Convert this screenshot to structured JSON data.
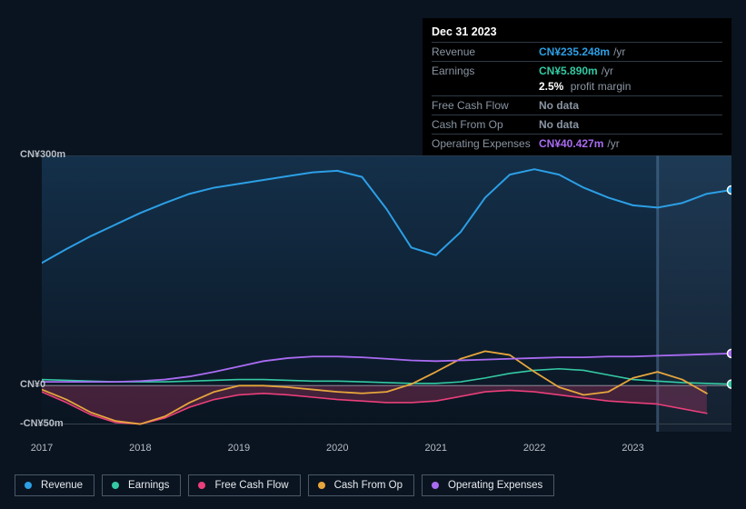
{
  "tooltip": {
    "date": "Dec 31 2023",
    "rows": [
      {
        "label": "Revenue",
        "value": "CN¥235.248m",
        "value_color": "#2c9fe5",
        "suffix": "/yr"
      },
      {
        "label": "Earnings",
        "value": "CN¥5.890m",
        "value_color": "#34c9a3",
        "suffix": "/yr",
        "sub": {
          "bold": "2.5%",
          "rest": "profit margin"
        }
      },
      {
        "label": "Free Cash Flow",
        "value": "No data",
        "value_color": "#8a95a3",
        "suffix": ""
      },
      {
        "label": "Cash From Op",
        "value": "No data",
        "value_color": "#8a95a3",
        "suffix": ""
      },
      {
        "label": "Operating Expenses",
        "value": "CN¥40.427m",
        "value_color": "#a96bf2",
        "suffix": "/yr"
      }
    ]
  },
  "chart": {
    "type": "line",
    "background_color": "#0a1420",
    "plot_gradient_top": "#14304a",
    "plot_gradient_bottom": "#0a1420",
    "grid_color": "#38424d",
    "baseline_color": "#6a7480",
    "xdomain": [
      2017,
      2024
    ],
    "ydomain": [
      -60,
      300
    ],
    "yticks": [
      {
        "v": 300,
        "label": "CN¥300m"
      },
      {
        "v": 0,
        "label": "CN¥0"
      },
      {
        "v": -50,
        "label": "-CN¥50m"
      }
    ],
    "xticks": [
      {
        "v": 2017,
        "label": "2017"
      },
      {
        "v": 2018,
        "label": "2018"
      },
      {
        "v": 2019,
        "label": "2019"
      },
      {
        "v": 2020,
        "label": "2020"
      },
      {
        "v": 2021,
        "label": "2021"
      },
      {
        "v": 2022,
        "label": "2022"
      },
      {
        "v": 2023,
        "label": "2023"
      }
    ],
    "highlight_x": 2023.25,
    "marker_x": 2024,
    "label_fontsize": 11,
    "series": [
      {
        "key": "revenue",
        "name": "Revenue",
        "color": "#2c9fe5",
        "line_width": 2,
        "has_marker": true,
        "points": [
          [
            2017.0,
            160
          ],
          [
            2017.25,
            178
          ],
          [
            2017.5,
            195
          ],
          [
            2017.75,
            210
          ],
          [
            2018.0,
            225
          ],
          [
            2018.25,
            238
          ],
          [
            2018.5,
            250
          ],
          [
            2018.75,
            258
          ],
          [
            2019.0,
            263
          ],
          [
            2019.25,
            268
          ],
          [
            2019.5,
            273
          ],
          [
            2019.75,
            278
          ],
          [
            2020.0,
            280
          ],
          [
            2020.25,
            272
          ],
          [
            2020.5,
            230
          ],
          [
            2020.75,
            180
          ],
          [
            2021.0,
            170
          ],
          [
            2021.25,
            200
          ],
          [
            2021.5,
            245
          ],
          [
            2021.75,
            275
          ],
          [
            2022.0,
            282
          ],
          [
            2022.25,
            275
          ],
          [
            2022.5,
            258
          ],
          [
            2022.75,
            245
          ],
          [
            2023.0,
            235
          ],
          [
            2023.25,
            232
          ],
          [
            2023.5,
            238
          ],
          [
            2023.75,
            250
          ],
          [
            2024.0,
            255
          ]
        ]
      },
      {
        "key": "earnings",
        "name": "Earnings",
        "color": "#34c9a3",
        "line_width": 1.6,
        "has_marker": true,
        "points": [
          [
            2017.0,
            8
          ],
          [
            2017.25,
            7
          ],
          [
            2017.5,
            6
          ],
          [
            2017.75,
            5
          ],
          [
            2018.0,
            5
          ],
          [
            2018.25,
            5
          ],
          [
            2018.5,
            6
          ],
          [
            2018.75,
            7
          ],
          [
            2019.0,
            8
          ],
          [
            2019.25,
            8
          ],
          [
            2019.5,
            7
          ],
          [
            2019.75,
            6
          ],
          [
            2020.0,
            6
          ],
          [
            2020.25,
            5
          ],
          [
            2020.5,
            4
          ],
          [
            2020.75,
            3
          ],
          [
            2021.0,
            3
          ],
          [
            2021.25,
            5
          ],
          [
            2021.5,
            10
          ],
          [
            2021.75,
            16
          ],
          [
            2022.0,
            20
          ],
          [
            2022.25,
            22
          ],
          [
            2022.5,
            20
          ],
          [
            2022.75,
            14
          ],
          [
            2023.0,
            8
          ],
          [
            2023.25,
            6
          ],
          [
            2023.5,
            4
          ],
          [
            2023.75,
            3
          ],
          [
            2024.0,
            2
          ]
        ]
      },
      {
        "key": "fcf",
        "name": "Free Cash Flow",
        "color": "#ea3f7a",
        "line_width": 1.6,
        "has_marker": false,
        "area_to_zero": true,
        "area_opacity": 0.25,
        "points": [
          [
            2017.0,
            -8
          ],
          [
            2017.25,
            -22
          ],
          [
            2017.5,
            -38
          ],
          [
            2017.75,
            -48
          ],
          [
            2018.0,
            -50
          ],
          [
            2018.25,
            -42
          ],
          [
            2018.5,
            -28
          ],
          [
            2018.75,
            -18
          ],
          [
            2019.0,
            -12
          ],
          [
            2019.25,
            -10
          ],
          [
            2019.5,
            -12
          ],
          [
            2019.75,
            -15
          ],
          [
            2020.0,
            -18
          ],
          [
            2020.25,
            -20
          ],
          [
            2020.5,
            -22
          ],
          [
            2020.75,
            -22
          ],
          [
            2021.0,
            -20
          ],
          [
            2021.25,
            -14
          ],
          [
            2021.5,
            -8
          ],
          [
            2021.75,
            -6
          ],
          [
            2022.0,
            -8
          ],
          [
            2022.25,
            -12
          ],
          [
            2022.5,
            -16
          ],
          [
            2022.75,
            -20
          ],
          [
            2023.0,
            -22
          ],
          [
            2023.25,
            -24
          ],
          [
            2023.5,
            -30
          ],
          [
            2023.75,
            -36
          ]
        ]
      },
      {
        "key": "cfo",
        "name": "Cash From Op",
        "color": "#e6a63c",
        "line_width": 1.8,
        "has_marker": false,
        "points": [
          [
            2017.0,
            -5
          ],
          [
            2017.25,
            -18
          ],
          [
            2017.5,
            -35
          ],
          [
            2017.75,
            -46
          ],
          [
            2018.0,
            -50
          ],
          [
            2018.25,
            -40
          ],
          [
            2018.5,
            -22
          ],
          [
            2018.75,
            -8
          ],
          [
            2019.0,
            0
          ],
          [
            2019.25,
            0
          ],
          [
            2019.5,
            -2
          ],
          [
            2019.75,
            -5
          ],
          [
            2020.0,
            -8
          ],
          [
            2020.25,
            -10
          ],
          [
            2020.5,
            -8
          ],
          [
            2020.75,
            2
          ],
          [
            2021.0,
            18
          ],
          [
            2021.25,
            35
          ],
          [
            2021.5,
            45
          ],
          [
            2021.75,
            40
          ],
          [
            2022.0,
            18
          ],
          [
            2022.25,
            -2
          ],
          [
            2022.5,
            -12
          ],
          [
            2022.75,
            -8
          ],
          [
            2023.0,
            10
          ],
          [
            2023.25,
            18
          ],
          [
            2023.5,
            8
          ],
          [
            2023.75,
            -10
          ]
        ]
      },
      {
        "key": "opex",
        "name": "Operating Expenses",
        "color": "#a96bf2",
        "line_width": 1.8,
        "has_marker": true,
        "points": [
          [
            2017.0,
            5
          ],
          [
            2017.25,
            5
          ],
          [
            2017.5,
            5
          ],
          [
            2017.75,
            5
          ],
          [
            2018.0,
            6
          ],
          [
            2018.25,
            8
          ],
          [
            2018.5,
            12
          ],
          [
            2018.75,
            18
          ],
          [
            2019.0,
            25
          ],
          [
            2019.25,
            32
          ],
          [
            2019.5,
            36
          ],
          [
            2019.75,
            38
          ],
          [
            2020.0,
            38
          ],
          [
            2020.25,
            37
          ],
          [
            2020.5,
            35
          ],
          [
            2020.75,
            33
          ],
          [
            2021.0,
            32
          ],
          [
            2021.25,
            33
          ],
          [
            2021.5,
            34
          ],
          [
            2021.75,
            35
          ],
          [
            2022.0,
            36
          ],
          [
            2022.25,
            37
          ],
          [
            2022.5,
            37
          ],
          [
            2022.75,
            38
          ],
          [
            2023.0,
            38
          ],
          [
            2023.25,
            39
          ],
          [
            2023.5,
            40
          ],
          [
            2023.75,
            41
          ],
          [
            2024.0,
            42
          ]
        ]
      }
    ],
    "legend": [
      {
        "key": "revenue",
        "label": "Revenue",
        "color": "#2c9fe5"
      },
      {
        "key": "earnings",
        "label": "Earnings",
        "color": "#34c9a3"
      },
      {
        "key": "fcf",
        "label": "Free Cash Flow",
        "color": "#ea3f7a"
      },
      {
        "key": "cfo",
        "label": "Cash From Op",
        "color": "#e6a63c"
      },
      {
        "key": "opex",
        "label": "Operating Expenses",
        "color": "#a96bf2"
      }
    ]
  }
}
